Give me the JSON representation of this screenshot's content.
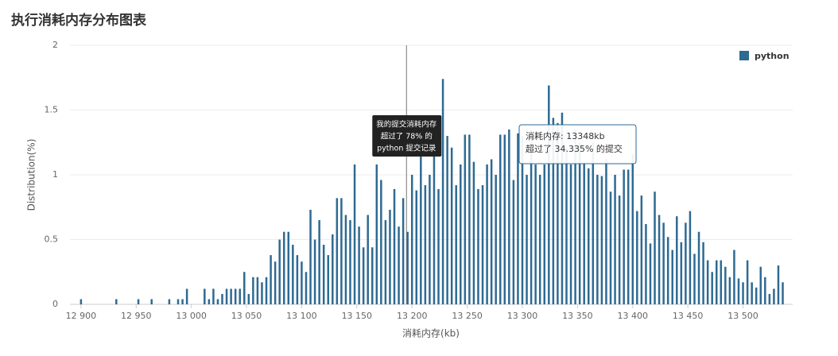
{
  "chart_data": {
    "type": "bar",
    "title": "执行消耗内存分布图表",
    "x_label": "消耗内存(kb)",
    "y_label": "Distribution(%)",
    "x": [
      12900,
      12932,
      12952,
      12964,
      12980,
      12988,
      12992,
      12996,
      13012,
      13016,
      13020,
      13024,
      13028,
      13032,
      13036,
      13040,
      13044,
      13048,
      13052,
      13056,
      13060,
      13064,
      13068,
      13072,
      13076,
      13080,
      13084,
      13088,
      13092,
      13096,
      13100,
      13104,
      13108,
      13112,
      13116,
      13120,
      13124,
      13128,
      13132,
      13136,
      13140,
      13144,
      13148,
      13152,
      13156,
      13160,
      13164,
      13168,
      13172,
      13176,
      13180,
      13184,
      13188,
      13192,
      13196,
      13200,
      13204,
      13208,
      13212,
      13216,
      13220,
      13224,
      13228,
      13232,
      13236,
      13240,
      13244,
      13248,
      13252,
      13256,
      13260,
      13264,
      13268,
      13272,
      13276,
      13280,
      13284,
      13288,
      13292,
      13296,
      13300,
      13304,
      13308,
      13312,
      13316,
      13320,
      13324,
      13328,
      13332,
      13336,
      13340,
      13344,
      13348,
      13352,
      13356,
      13360,
      13364,
      13368,
      13372,
      13376,
      13380,
      13384,
      13388,
      13392,
      13396,
      13400,
      13404,
      13408,
      13412,
      13416,
      13420,
      13424,
      13428,
      13432,
      13436,
      13440,
      13444,
      13448,
      13452,
      13456,
      13460,
      13464,
      13468,
      13472,
      13476,
      13480,
      13484,
      13488,
      13492,
      13496,
      13500,
      13504,
      13508,
      13512,
      13516,
      13520,
      13524,
      13528,
      13532,
      13536
    ],
    "series": [
      {
        "name": "python",
        "color": "#2e6a92",
        "values": [
          0.04,
          0.04,
          0.04,
          0.04,
          0.04,
          0.04,
          0.04,
          0.12,
          0.12,
          0.04,
          0.12,
          0.04,
          0.08,
          0.12,
          0.12,
          0.12,
          0.12,
          0.25,
          0.08,
          0.21,
          0.21,
          0.17,
          0.21,
          0.38,
          0.33,
          0.5,
          0.56,
          0.56,
          0.46,
          0.38,
          0.33,
          0.25,
          0.73,
          0.5,
          0.65,
          0.46,
          0.38,
          0.54,
          0.82,
          0.82,
          0.69,
          0.65,
          1.08,
          0.6,
          0.44,
          0.69,
          0.44,
          1.08,
          0.96,
          0.65,
          0.73,
          0.89,
          0.6,
          0.82,
          0.56,
          1.0,
          0.88,
          1.15,
          0.92,
          1.0,
          1.32,
          0.89,
          1.74,
          1.3,
          1.21,
          0.92,
          1.08,
          1.31,
          1.31,
          1.1,
          0.89,
          0.92,
          1.08,
          1.12,
          1.0,
          1.31,
          1.31,
          1.35,
          0.96,
          1.32,
          1.3,
          1.0,
          1.25,
          1.08,
          1.0,
          1.08,
          1.69,
          1.44,
          1.4,
          1.48,
          1.21,
          1.08,
          1.35,
          1.25,
          1.1,
          1.05,
          1.25,
          1.0,
          0.99,
          1.12,
          0.87,
          1.0,
          0.84,
          1.04,
          1.04,
          1.16,
          0.72,
          0.84,
          0.62,
          0.47,
          0.87,
          0.69,
          0.63,
          0.52,
          0.42,
          0.68,
          0.48,
          0.63,
          0.72,
          0.39,
          0.56,
          0.48,
          0.34,
          0.25,
          0.34,
          0.34,
          0.29,
          0.21,
          0.42,
          0.2,
          0.17,
          0.34,
          0.17,
          0.13,
          0.29,
          0.21,
          0.08,
          0.12,
          0.3,
          0.17
        ]
      }
    ],
    "xlim": [
      12890,
      13545
    ],
    "ylim": [
      0,
      2
    ],
    "xticks": [
      {
        "value": 12900,
        "label": "12 900"
      },
      {
        "value": 12950,
        "label": "12 950"
      },
      {
        "value": 13000,
        "label": "13 000"
      },
      {
        "value": 13050,
        "label": "13 050"
      },
      {
        "value": 13100,
        "label": "13 100"
      },
      {
        "value": 13150,
        "label": "13 150"
      },
      {
        "value": 13200,
        "label": "13 200"
      },
      {
        "value": 13250,
        "label": "13 250"
      },
      {
        "value": 13300,
        "label": "13 300"
      },
      {
        "value": 13350,
        "label": "13 350"
      },
      {
        "value": 13400,
        "label": "13 400"
      },
      {
        "value": 13450,
        "label": "13 450"
      },
      {
        "value": 13500,
        "label": "13 500"
      }
    ],
    "yticks": [
      0,
      0.5,
      1,
      1.5,
      2
    ],
    "grid": true,
    "legend": "top-right",
    "annotation": {
      "x": 13195,
      "lines": [
        "我的提交消耗内存",
        "超过了 78% 的",
        "python 提交记录"
      ]
    },
    "tooltip": {
      "lines": [
        "消耗内存: 13348kb",
        "超过了 34.335% 的提交"
      ]
    }
  }
}
